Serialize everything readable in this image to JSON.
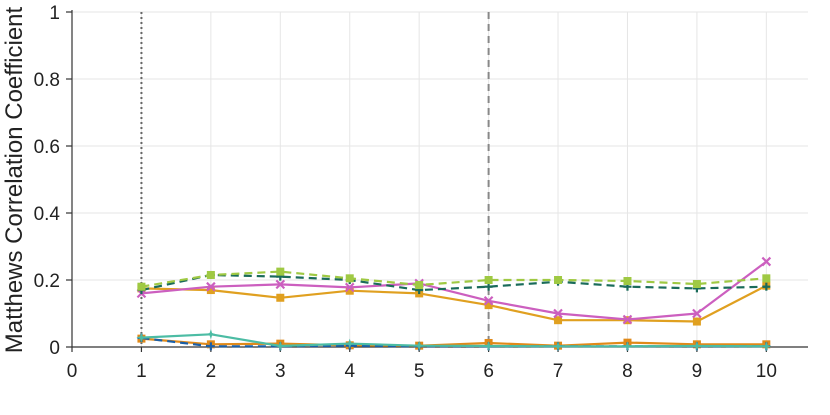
{
  "chart_data": {
    "type": "line",
    "title": "",
    "xlabel": "",
    "ylabel": "Matthews Correlation Coefficient",
    "xlim": [
      0,
      10.6
    ],
    "ylim": [
      0,
      1
    ],
    "x_ticks": [
      0,
      1,
      2,
      3,
      4,
      5,
      6,
      7,
      8,
      9,
      10
    ],
    "y_ticks": [
      0,
      0.2,
      0.4,
      0.6,
      0.8,
      1
    ],
    "y_tick_labels": [
      "0",
      "0.2",
      "0.4",
      "0.6",
      "0.8",
      "1"
    ],
    "grid": true,
    "reference_lines": [
      {
        "x": 1,
        "style": "dotted",
        "color": "#666666"
      },
      {
        "x": 6,
        "style": "dashed",
        "color": "#888888"
      }
    ],
    "x": [
      1,
      2,
      3,
      4,
      5,
      6,
      7,
      8,
      9,
      10
    ],
    "series": [
      {
        "color": "#9fc943",
        "dash": "dashed",
        "marker": "square",
        "values": [
          0.18,
          0.215,
          0.225,
          0.205,
          0.185,
          0.2,
          0.2,
          0.197,
          0.188,
          0.205
        ]
      },
      {
        "color": "#1a6b5a",
        "dash": "dashed",
        "marker": "plus",
        "values": [
          0.17,
          0.215,
          0.21,
          0.2,
          0.17,
          0.18,
          0.195,
          0.18,
          0.175,
          0.18
        ]
      },
      {
        "color": "#cc5fbf",
        "dash": "solid",
        "marker": "x",
        "values": [
          0.16,
          0.18,
          0.187,
          0.178,
          0.19,
          0.138,
          0.1,
          0.082,
          0.1,
          0.255
        ]
      },
      {
        "color": "#e0a020",
        "dash": "solid",
        "marker": "square",
        "values": [
          0.175,
          0.17,
          0.147,
          0.168,
          0.16,
          0.125,
          0.08,
          0.08,
          0.076,
          0.183
        ]
      },
      {
        "color": "#4cbca4",
        "dash": "solid",
        "marker": "star",
        "values": [
          0.028,
          0.038,
          0.003,
          0.01,
          0.004,
          0.003,
          0.002,
          0.002,
          0.003,
          0.002
        ]
      },
      {
        "color": "#1a5fa8",
        "dash": "dashed",
        "marker": "plus",
        "values": [
          0.027,
          0.002,
          0.002,
          0.004,
          0.002,
          0.002,
          0.002,
          0.002,
          0.002,
          0.002
        ]
      },
      {
        "color": "#e08a1a",
        "dash": "solid",
        "marker": "square",
        "values": [
          0.025,
          0.008,
          0.01,
          0.005,
          0.004,
          0.012,
          0.004,
          0.013,
          0.008,
          0.008
        ]
      }
    ]
  }
}
